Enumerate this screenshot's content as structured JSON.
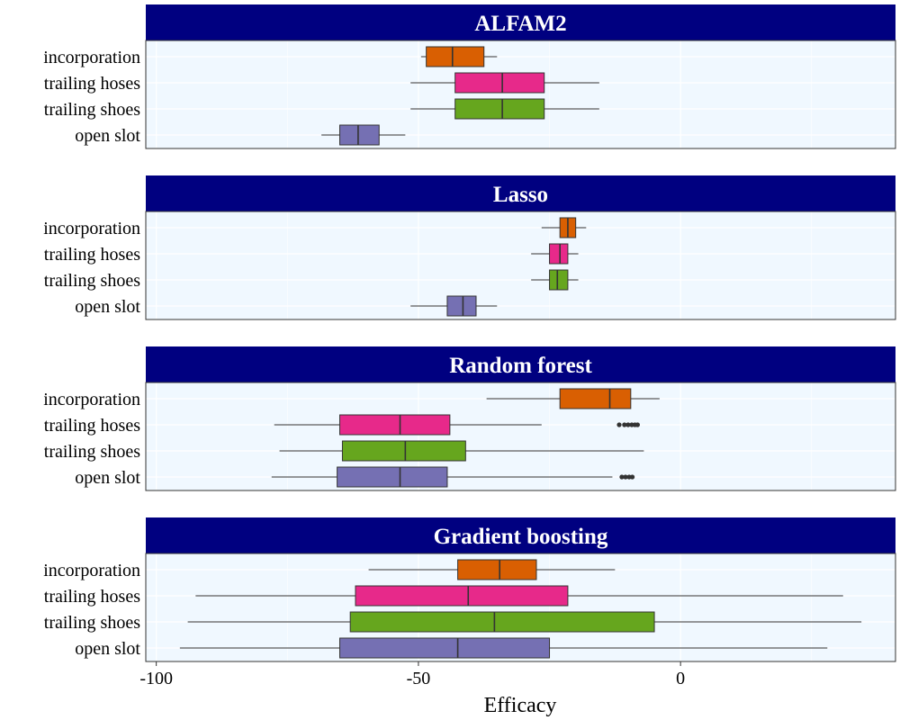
{
  "chart_data": {
    "type": "boxplot",
    "xlabel": "Efficacy",
    "xlim": [
      -102,
      41
    ],
    "x_ticks": [
      {
        "value": -100,
        "label": "-100"
      },
      {
        "value": -50,
        "label": "-50"
      },
      {
        "value": 0,
        "label": "0"
      }
    ],
    "categories": [
      "incorporation",
      "trailing hoses",
      "trailing shoes",
      "open slot"
    ],
    "category_colors": {
      "incorporation": "#D95F02",
      "trailing hoses": "#E7298A",
      "trailing shoes": "#66A61E",
      "open slot": "#7570B3"
    },
    "panel_strip_color": "#000080",
    "panel_background": "#F0F8FF",
    "grid": true,
    "panels": [
      {
        "title": "ALFAM2",
        "boxes": [
          {
            "category": "incorporation",
            "whisker_low": -49.5,
            "q1": -48.5,
            "median": -43.5,
            "q3": -37.5,
            "whisker_high": -35,
            "outliers": []
          },
          {
            "category": "trailing hoses",
            "whisker_low": -51.5,
            "q1": -43,
            "median": -34,
            "q3": -26,
            "whisker_high": -15.5,
            "outliers": []
          },
          {
            "category": "trailing shoes",
            "whisker_low": -51.5,
            "q1": -43,
            "median": -34,
            "q3": -26,
            "whisker_high": -15.5,
            "outliers": []
          },
          {
            "category": "open slot",
            "whisker_low": -68.5,
            "q1": -65,
            "median": -61.5,
            "q3": -57.5,
            "whisker_high": -52.5,
            "outliers": []
          }
        ]
      },
      {
        "title": "Lasso",
        "boxes": [
          {
            "category": "incorporation",
            "whisker_low": -26.5,
            "q1": -23,
            "median": -21.5,
            "q3": -20,
            "whisker_high": -18,
            "outliers": []
          },
          {
            "category": "trailing hoses",
            "whisker_low": -28.5,
            "q1": -25,
            "median": -23,
            "q3": -21.5,
            "whisker_high": -19.5,
            "outliers": []
          },
          {
            "category": "trailing shoes",
            "whisker_low": -28.5,
            "q1": -25,
            "median": -23.5,
            "q3": -21.5,
            "whisker_high": -19.5,
            "outliers": []
          },
          {
            "category": "open slot",
            "whisker_low": -51.5,
            "q1": -44.5,
            "median": -41.5,
            "q3": -39,
            "whisker_high": -35,
            "outliers": []
          }
        ]
      },
      {
        "title": "Random forest",
        "boxes": [
          {
            "category": "incorporation",
            "whisker_low": -37,
            "q1": -23,
            "median": -13.5,
            "q3": -9.5,
            "whisker_high": -4,
            "outliers": []
          },
          {
            "category": "trailing hoses",
            "whisker_low": -77.5,
            "q1": -65,
            "median": -53.5,
            "q3": -44,
            "whisker_high": -26.5,
            "outliers": [
              -11.7,
              -10.7,
              -10.0,
              -9.3,
              -8.7,
              -8.2
            ]
          },
          {
            "category": "trailing shoes",
            "whisker_low": -76.5,
            "q1": -64.5,
            "median": -52.5,
            "q3": -41,
            "whisker_high": -7,
            "outliers": []
          },
          {
            "category": "open slot",
            "whisker_low": -78,
            "q1": -65.5,
            "median": -53.5,
            "q3": -44.5,
            "whisker_high": -13,
            "outliers": [
              -11.2,
              -10.5,
              -9.8,
              -9.2
            ]
          }
        ]
      },
      {
        "title": "Gradient boosting",
        "boxes": [
          {
            "category": "incorporation",
            "whisker_low": -59.5,
            "q1": -42.5,
            "median": -34.5,
            "q3": -27.5,
            "whisker_high": -12.5,
            "outliers": []
          },
          {
            "category": "trailing hoses",
            "whisker_low": -92.5,
            "q1": -62,
            "median": -40.5,
            "q3": -21.5,
            "whisker_high": 31,
            "outliers": []
          },
          {
            "category": "trailing shoes",
            "whisker_low": -94,
            "q1": -63,
            "median": -35.5,
            "q3": -5,
            "whisker_high": 34.5,
            "outliers": []
          },
          {
            "category": "open slot",
            "whisker_low": -95.5,
            "q1": -65,
            "median": -42.5,
            "q3": -25,
            "whisker_high": 28,
            "outliers": []
          }
        ]
      }
    ]
  }
}
